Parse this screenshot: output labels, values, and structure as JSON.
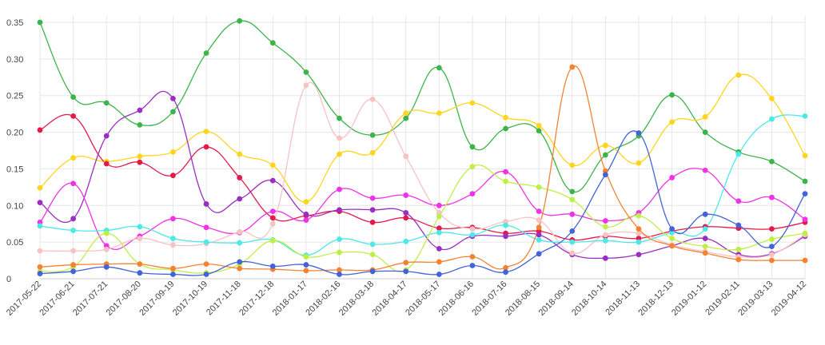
{
  "chart_data": {
    "type": "line",
    "title": "",
    "xlabel": "",
    "ylabel": "",
    "ylim": [
      0,
      0.35
    ],
    "y_ticks": [
      0,
      0.05,
      0.1,
      0.15,
      0.2,
      0.25,
      0.3,
      0.35
    ],
    "y_tick_labels": [
      "0",
      "0.05",
      "0.10",
      "0.15",
      "0.20",
      "0.25",
      "0.30",
      "0.35"
    ],
    "grid": true,
    "legend": "none",
    "categories": [
      "2017-05-22",
      "2017-06-21",
      "2017-07-21",
      "2017-08-20",
      "2017-09-19",
      "2017-10-19",
      "2017-11-18",
      "2017-12-18",
      "2018-01-17",
      "2018-02-16",
      "2018-03-18",
      "2018-04-17",
      "2018-05-17",
      "2018-06-16",
      "2018-07-16",
      "2018-08-15",
      "2018-09-14",
      "2018-10-14",
      "2018-11-13",
      "2018-12-13",
      "2019-01-12",
      "2019-02-11",
      "2019-03-13",
      "2019-04-12"
    ],
    "series": [
      {
        "color": "#3cb44b",
        "values": [
          0.35,
          0.248,
          0.24,
          0.21,
          0.228,
          0.308,
          0.352,
          0.322,
          0.282,
          0.219,
          0.196,
          0.219,
          0.288,
          0.18,
          0.205,
          0.202,
          0.119,
          0.169,
          0.195,
          0.251,
          0.2,
          0.173,
          0.16,
          0.133
        ]
      },
      {
        "color": "#ffd51a",
        "values": [
          0.124,
          0.165,
          0.16,
          0.167,
          0.173,
          0.201,
          0.17,
          0.155,
          0.105,
          0.17,
          0.172,
          0.226,
          0.226,
          0.24,
          0.22,
          0.209,
          0.155,
          0.182,
          0.158,
          0.214,
          0.221,
          0.278,
          0.246,
          0.168
        ]
      },
      {
        "color": "#e6194b",
        "values": [
          0.203,
          0.222,
          0.157,
          0.159,
          0.141,
          0.18,
          0.138,
          0.083,
          0.086,
          0.092,
          0.077,
          0.083,
          0.069,
          0.07,
          0.062,
          0.065,
          0.053,
          0.058,
          0.055,
          0.065,
          0.071,
          0.069,
          0.068,
          0.077
        ]
      },
      {
        "color": "#9a2ec1",
        "values": [
          0.104,
          0.082,
          0.195,
          0.23,
          0.246,
          0.102,
          0.109,
          0.134,
          0.088,
          0.094,
          0.094,
          0.09,
          0.041,
          0.058,
          0.058,
          0.06,
          0.033,
          0.028,
          0.033,
          0.045,
          0.055,
          0.033,
          0.034,
          0.058
        ]
      },
      {
        "color": "#f032e6",
        "values": [
          0.077,
          0.13,
          0.045,
          0.058,
          0.082,
          0.07,
          0.063,
          0.092,
          0.08,
          0.122,
          0.11,
          0.114,
          0.1,
          0.116,
          0.146,
          0.092,
          0.088,
          0.079,
          0.09,
          0.138,
          0.148,
          0.106,
          0.111,
          0.081
        ]
      },
      {
        "color": "#f8c2c4",
        "values": [
          0.038,
          0.038,
          0.04,
          0.055,
          0.046,
          0.048,
          0.064,
          0.075,
          0.264,
          0.192,
          0.245,
          0.167,
          0.09,
          0.068,
          0.078,
          0.08,
          0.035,
          0.06,
          0.062,
          0.046,
          0.037,
          0.03,
          0.033,
          0.06
        ]
      },
      {
        "color": "#4de8e8",
        "values": [
          0.072,
          0.066,
          0.066,
          0.071,
          0.055,
          0.05,
          0.049,
          0.053,
          0.032,
          0.054,
          0.047,
          0.051,
          0.063,
          0.06,
          0.073,
          0.053,
          0.05,
          0.052,
          0.05,
          0.063,
          0.068,
          0.17,
          0.218,
          0.222
        ]
      },
      {
        "color": "#bfef45",
        "values": [
          0.01,
          0.016,
          0.062,
          0.02,
          0.012,
          0.008,
          0.02,
          0.052,
          0.03,
          0.036,
          0.033,
          0.012,
          0.085,
          0.153,
          0.133,
          0.125,
          0.108,
          0.071,
          0.086,
          0.055,
          0.044,
          0.04,
          0.054,
          0.062
        ]
      },
      {
        "color": "#f58231",
        "values": [
          0.016,
          0.019,
          0.02,
          0.02,
          0.014,
          0.02,
          0.014,
          0.013,
          0.011,
          0.012,
          0.012,
          0.022,
          0.023,
          0.03,
          0.015,
          0.07,
          0.289,
          0.147,
          0.068,
          0.045,
          0.035,
          0.026,
          0.025,
          0.025
        ]
      },
      {
        "color": "#4363d8",
        "values": [
          0.007,
          0.01,
          0.016,
          0.008,
          0.006,
          0.006,
          0.023,
          0.017,
          0.019,
          0.006,
          0.01,
          0.01,
          0.006,
          0.018,
          0.009,
          0.034,
          0.065,
          0.142,
          0.199,
          0.068,
          0.088,
          0.073,
          0.044,
          0.116
        ]
      }
    ]
  }
}
